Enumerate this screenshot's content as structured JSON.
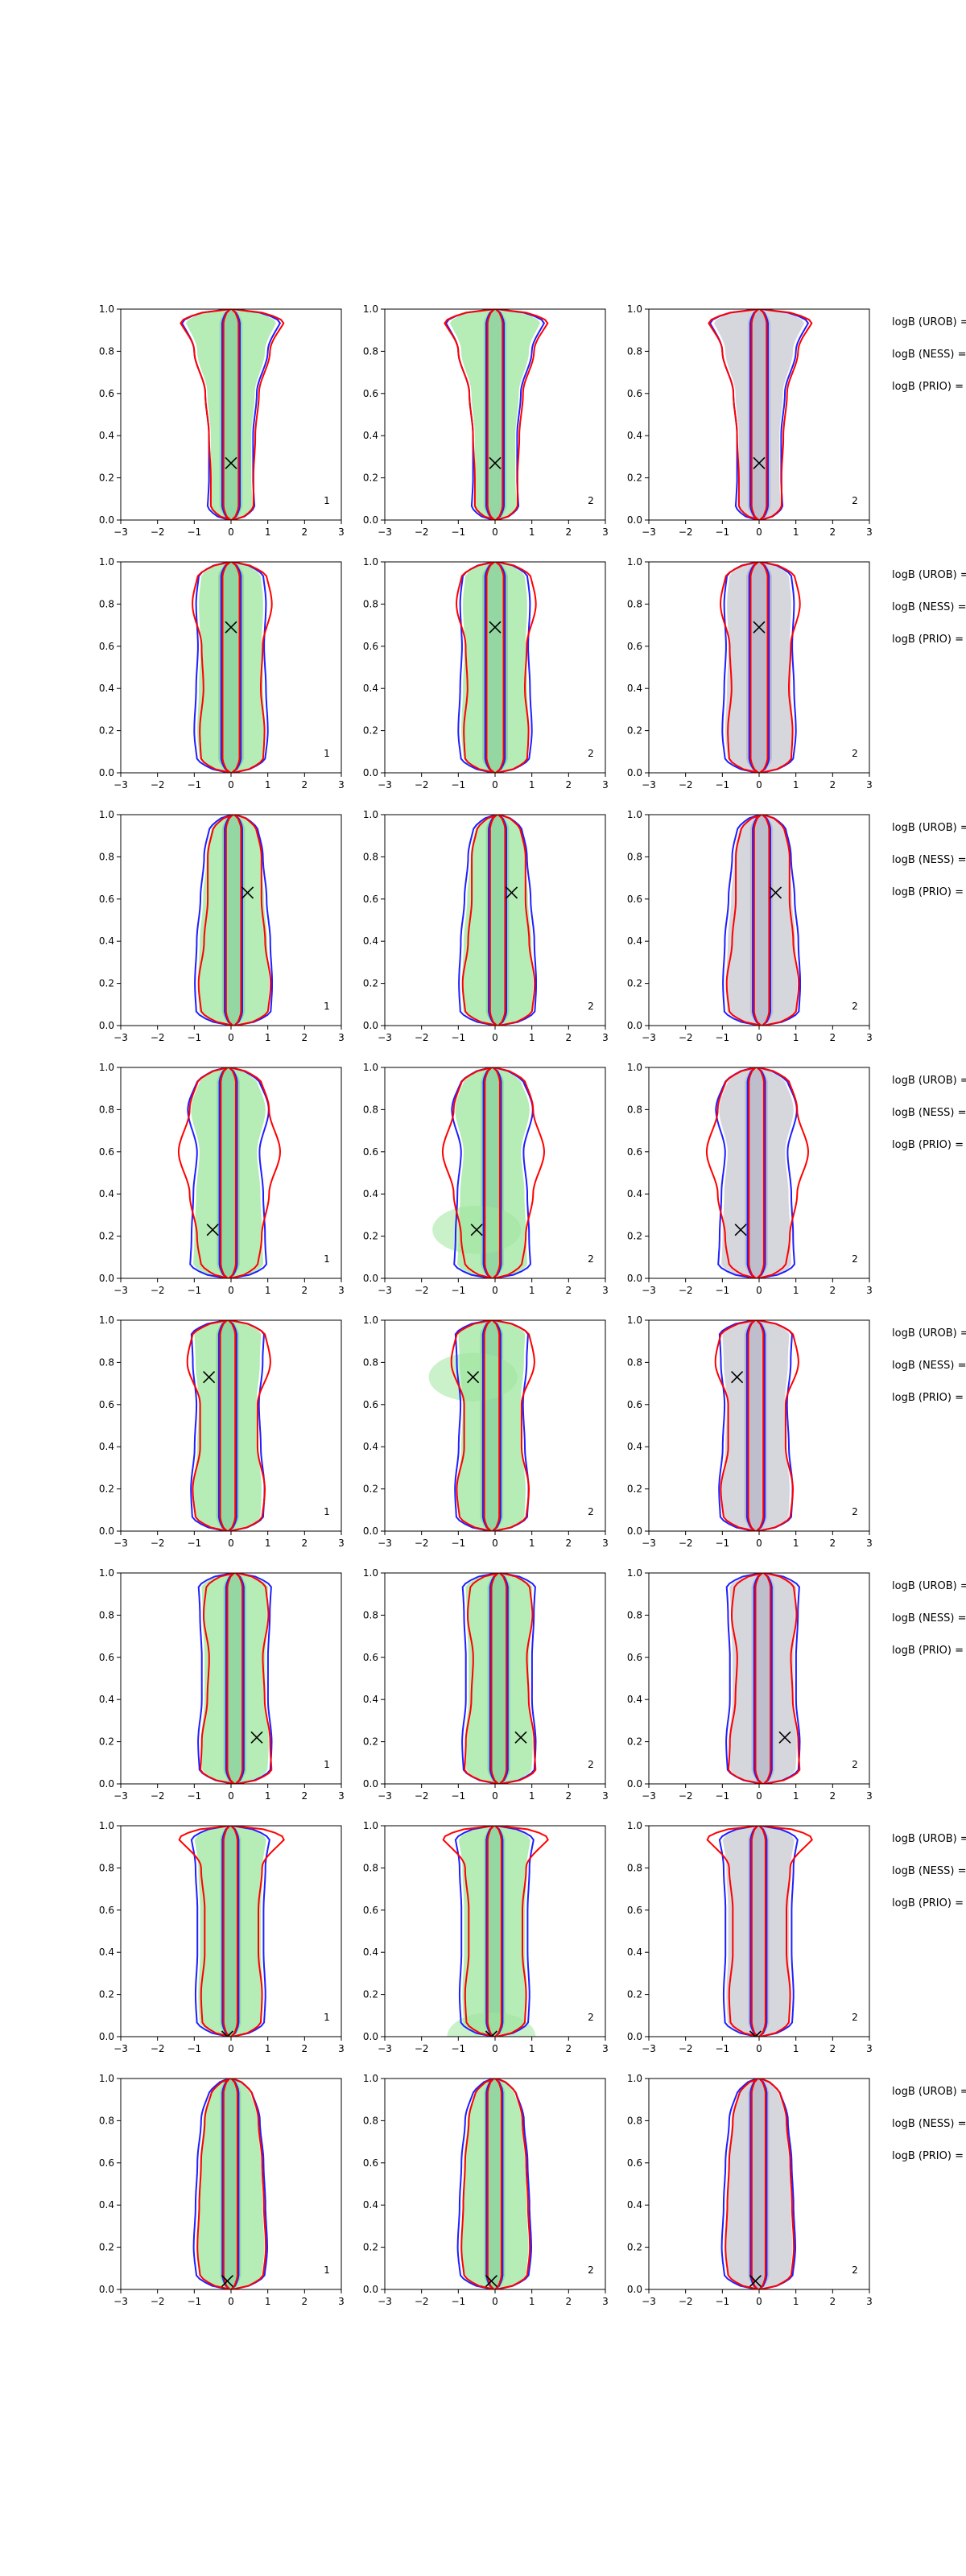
{
  "figure": {
    "rows": 8,
    "columns": 3,
    "column_kind": [
      "reference",
      "alternative",
      "prior"
    ],
    "colors": {
      "uniform_contour": "#1f1fff",
      "ness_contour": "#ff0000",
      "fill_green": "#9ee69e",
      "fill_gray": "#c8c8d2",
      "marker": "#000000"
    }
  },
  "chart_data": {
    "type": "contour",
    "xlim": [
      -3,
      3
    ],
    "ylim": [
      0,
      1
    ],
    "xticks": [
      "−3",
      "−2",
      "−1",
      "0",
      "1",
      "2",
      "3"
    ],
    "yticks": [
      "0.0",
      "0.2",
      "0.4",
      "0.6",
      "0.8",
      "1.0"
    ],
    "panel_labels": [
      "1",
      "2",
      "2"
    ],
    "logB_labels": [
      "logB (UROB) =",
      "logB (NESS) =",
      "logB (PRIO) ="
    ],
    "rows": [
      {
        "marker": {
          "x": 0.0,
          "y": 0.27
        },
        "shape": [
          0.6,
          0.55,
          0.55,
          0.65,
          0.95,
          1.4
        ],
        "inner": 0.22,
        "red": [
          0.55,
          0.55,
          0.6,
          0.7,
          1.0,
          1.5
        ]
      },
      {
        "marker": {
          "x": 0.0,
          "y": 0.69
        },
        "shape": [
          0.85,
          0.95,
          0.9,
          0.85,
          0.9,
          0.8
        ],
        "inner": 0.25,
        "red": [
          0.8,
          0.85,
          0.75,
          0.8,
          1.05,
          0.85
        ]
      },
      {
        "marker": {
          "x": 0.45,
          "y": 0.63
        },
        "shape": [
          0.95,
          1.0,
          0.95,
          0.85,
          0.75,
          0.55
        ],
        "inner": 0.22,
        "red": [
          0.85,
          0.95,
          0.8,
          0.7,
          0.7,
          0.5
        ]
      },
      {
        "marker": {
          "x": -0.5,
          "y": 0.23
        },
        "shape": [
          1.0,
          0.95,
          0.9,
          0.8,
          1.05,
          0.7
        ],
        "inner": 0.22,
        "red": [
          0.7,
          0.85,
          1.05,
          1.35,
          1.05,
          0.75
        ]
      },
      {
        "marker": {
          "x": -0.6,
          "y": 0.73
        },
        "shape": [
          0.9,
          0.95,
          0.85,
          0.8,
          0.9,
          0.95
        ],
        "inner": 0.22,
        "red": [
          0.85,
          0.95,
          0.75,
          0.75,
          1.1,
          0.9
        ]
      },
      {
        "marker": {
          "x": 0.7,
          "y": 0.22
        },
        "shape": [
          0.9,
          0.95,
          0.85,
          0.85,
          0.9,
          0.95
        ],
        "inner": 0.22,
        "red": [
          0.95,
          0.9,
          0.75,
          0.7,
          0.85,
          0.75
        ]
      },
      {
        "marker": {
          "x": -0.1,
          "y": 0.0
        },
        "shape": [
          0.85,
          0.9,
          0.85,
          0.85,
          0.9,
          1.05
        ],
        "inner": 0.2,
        "red": [
          0.75,
          0.8,
          0.7,
          0.7,
          0.8,
          1.6
        ]
      },
      {
        "marker": {
          "x": -0.1,
          "y": 0.04
        },
        "shape": [
          0.85,
          0.95,
          0.9,
          0.85,
          0.75,
          0.45
        ],
        "inner": 0.2,
        "red": [
          0.8,
          0.9,
          0.85,
          0.8,
          0.7,
          0.45
        ]
      }
    ]
  }
}
